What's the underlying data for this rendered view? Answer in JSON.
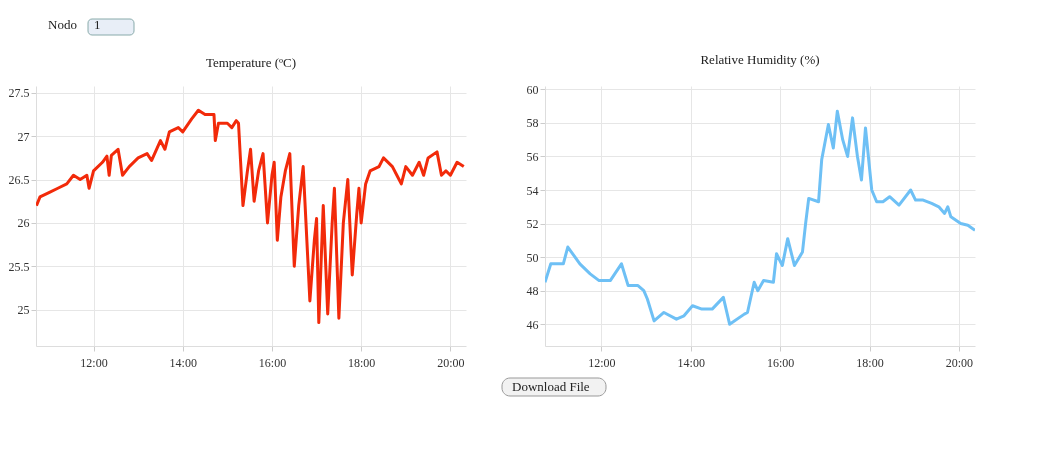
{
  "chart_data": [
    {
      "type": "line",
      "title": "Temperature (ºC)",
      "annotations": [
        "Nodo",
        "1"
      ],
      "grid": true,
      "marker": "none",
      "line_style": "solid",
      "xlim": [
        10.71,
        20.35
      ],
      "xticks": [
        {
          "value": 12,
          "label": "12:00"
        },
        {
          "value": 14,
          "label": "14:00"
        },
        {
          "value": 16,
          "label": "16:00"
        },
        {
          "value": 18,
          "label": "18:00"
        },
        {
          "value": 20,
          "label": "20:00"
        }
      ],
      "ylim": [
        24.58,
        27.58
      ],
      "yticks": [
        25,
        25.5,
        26,
        26.5,
        27,
        27.5
      ],
      "x": [
        10.72,
        10.8,
        11.0,
        11.2,
        11.4,
        11.55,
        11.7,
        11.85,
        11.9,
        12.0,
        12.2,
        12.3,
        12.35,
        12.4,
        12.55,
        12.65,
        12.8,
        13.0,
        13.2,
        13.3,
        13.5,
        13.6,
        13.7,
        13.9,
        14.0,
        14.2,
        14.35,
        14.5,
        14.7,
        14.73,
        14.8,
        15.0,
        15.1,
        15.2,
        15.25,
        15.35,
        15.45,
        15.52,
        15.6,
        15.7,
        15.8,
        15.9,
        16.0,
        16.05,
        16.12,
        16.2,
        16.3,
        16.4,
        16.5,
        16.6,
        16.7,
        16.85,
        16.95,
        17.0,
        17.05,
        17.15,
        17.25,
        17.35,
        17.4,
        17.5,
        17.6,
        17.7,
        17.8,
        17.9,
        17.95,
        18.0,
        18.1,
        18.2,
        18.4,
        18.5,
        18.7,
        18.8,
        18.9,
        19.0,
        19.15,
        19.3,
        19.4,
        19.5,
        19.7,
        19.8,
        19.9,
        20.0,
        20.15,
        20.3
      ],
      "series": [
        {
          "color": "#f22a0a",
          "values": [
            26.2,
            26.3,
            26.35,
            26.4,
            26.45,
            26.55,
            26.5,
            26.55,
            26.4,
            26.6,
            26.7,
            26.77,
            26.55,
            26.78,
            26.85,
            26.55,
            26.65,
            26.75,
            26.8,
            26.72,
            26.95,
            26.85,
            27.05,
            27.1,
            27.05,
            27.2,
            27.3,
            27.25,
            27.25,
            26.95,
            27.15,
            27.15,
            27.1,
            27.18,
            27.15,
            26.2,
            26.6,
            26.85,
            26.25,
            26.6,
            26.8,
            26.0,
            26.55,
            26.7,
            25.8,
            26.3,
            26.6,
            26.8,
            25.5,
            26.2,
            26.65,
            25.1,
            25.8,
            26.05,
            24.85,
            26.2,
            24.95,
            26.0,
            26.4,
            24.9,
            26.0,
            26.5,
            25.4,
            26.1,
            26.4,
            26.0,
            26.45,
            26.6,
            26.65,
            26.75,
            26.65,
            26.55,
            26.45,
            26.65,
            26.55,
            26.7,
            26.55,
            26.75,
            26.82,
            26.55,
            26.6,
            26.55,
            26.7,
            26.65
          ]
        }
      ]
    },
    {
      "type": "line",
      "title": "Relative Humidity (%)",
      "annotations": [
        "Download File"
      ],
      "grid": true,
      "marker": "none",
      "line_style": "solid",
      "xlim": [
        10.74,
        20.36
      ],
      "xticks": [
        {
          "value": 12,
          "label": "12:00"
        },
        {
          "value": 14,
          "label": "14:00"
        },
        {
          "value": 16,
          "label": "16:00"
        },
        {
          "value": 18,
          "label": "18:00"
        },
        {
          "value": 20,
          "label": "20:00"
        }
      ],
      "ylim": [
        44.7,
        60.2
      ],
      "yticks": [
        46,
        48,
        50,
        52,
        54,
        56,
        58,
        60
      ],
      "x": [
        10.74,
        10.87,
        11.0,
        11.15,
        11.25,
        11.52,
        11.75,
        11.95,
        12.2,
        12.45,
        12.6,
        12.82,
        12.95,
        13.03,
        13.18,
        13.4,
        13.68,
        13.85,
        14.04,
        14.25,
        14.48,
        14.73,
        14.87,
        15.2,
        15.27,
        15.42,
        15.5,
        15.63,
        15.85,
        15.92,
        16.05,
        16.17,
        16.32,
        16.5,
        16.57,
        16.64,
        16.86,
        16.93,
        17.08,
        17.19,
        17.28,
        17.4,
        17.51,
        17.62,
        17.73,
        17.82,
        17.91,
        18.05,
        18.16,
        18.3,
        18.45,
        18.66,
        18.92,
        19.03,
        19.2,
        19.39,
        19.55,
        19.68,
        19.75,
        19.82,
        20.04,
        20.2,
        20.36
      ],
      "series": [
        {
          "color": "#6ec0f5",
          "values": [
            48.5,
            49.6,
            49.6,
            49.6,
            50.6,
            49.6,
            49.0,
            48.6,
            48.6,
            49.6,
            48.3,
            48.3,
            48.0,
            47.5,
            46.2,
            46.7,
            46.3,
            46.5,
            47.1,
            46.9,
            46.9,
            47.6,
            46.0,
            46.6,
            46.7,
            48.5,
            48.0,
            48.6,
            48.5,
            50.2,
            49.5,
            51.1,
            49.5,
            50.3,
            52.0,
            53.5,
            53.3,
            55.8,
            57.9,
            56.5,
            58.7,
            57.0,
            56.0,
            58.3,
            56.0,
            54.6,
            57.7,
            54.0,
            53.3,
            53.3,
            53.6,
            53.1,
            54.0,
            53.4,
            53.4,
            53.2,
            53.0,
            52.6,
            53.0,
            52.4,
            52.0,
            51.9,
            51.6
          ]
        }
      ]
    }
  ]
}
